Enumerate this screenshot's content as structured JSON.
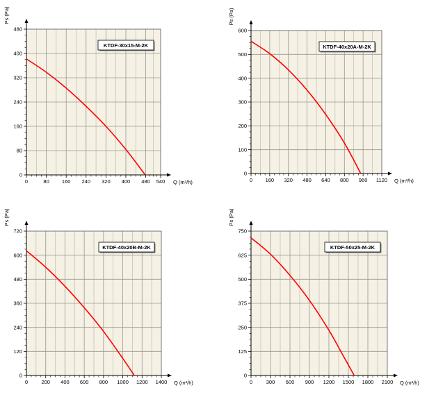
{
  "chart_data": [
    {
      "type": "line",
      "xlabel": "Q (m³/h)",
      "ylabel": "Ps (Pa)",
      "legend_position": "top-right",
      "grid": true,
      "xlim": [
        0,
        540
      ],
      "ylim": [
        0,
        480
      ],
      "xticks": [
        0,
        80,
        160,
        240,
        320,
        400,
        480,
        540
      ],
      "yticks": [
        0,
        80,
        160,
        240,
        320,
        400,
        480
      ],
      "series": [
        {
          "name": "KTDF-30x15-M-2K",
          "color": "#ff0000",
          "x": [
            0,
            80,
            160,
            240,
            320,
            400,
            478
          ],
          "y": [
            382,
            338,
            286,
            226,
            160,
            84,
            0
          ]
        }
      ]
    },
    {
      "type": "line",
      "xlabel": "Q (m³/h)",
      "ylabel": "Ps (Pa)",
      "legend_position": "top-right",
      "grid": true,
      "xlim": [
        0,
        1120
      ],
      "ylim": [
        0,
        600
      ],
      "xticks": [
        0,
        160,
        320,
        480,
        640,
        800,
        960,
        1120
      ],
      "yticks": [
        0,
        100,
        200,
        300,
        400,
        500,
        600
      ],
      "series": [
        {
          "name": "KTDF-40x20A-M-2K",
          "color": "#ff0000",
          "x": [
            0,
            160,
            320,
            480,
            640,
            800,
            940
          ],
          "y": [
            555,
            503,
            435,
            350,
            248,
            128,
            0
          ]
        }
      ]
    },
    {
      "type": "line",
      "xlabel": "Q (m³/h)",
      "ylabel": "Ps (Pa)",
      "legend_position": "top-right",
      "grid": true,
      "xlim": [
        0,
        1400
      ],
      "ylim": [
        0,
        720
      ],
      "xticks": [
        0,
        200,
        400,
        600,
        800,
        1000,
        1200,
        1400
      ],
      "yticks": [
        0,
        120,
        240,
        360,
        480,
        600,
        720
      ],
      "series": [
        {
          "name": "KTDF-40x20B-M-2K",
          "color": "#ff0000",
          "x": [
            0,
            200,
            400,
            600,
            800,
            1000,
            1120
          ],
          "y": [
            622,
            540,
            445,
            338,
            220,
            85,
            0
          ]
        }
      ]
    },
    {
      "type": "line",
      "xlabel": "Q (m³/h)",
      "ylabel": "Ps (Pa)",
      "legend_position": "top-right",
      "grid": true,
      "xlim": [
        0,
        2100
      ],
      "ylim": [
        0,
        750
      ],
      "xticks": [
        0,
        300,
        600,
        900,
        1200,
        1500,
        1800,
        2100
      ],
      "yticks": [
        0,
        125,
        250,
        375,
        500,
        625,
        750
      ],
      "series": [
        {
          "name": "KTDF-50x25-M-2K",
          "color": "#ff0000",
          "x": [
            0,
            300,
            600,
            900,
            1200,
            1400,
            1590
          ],
          "y": [
            715,
            630,
            520,
            390,
            235,
            115,
            0
          ]
        }
      ]
    }
  ]
}
